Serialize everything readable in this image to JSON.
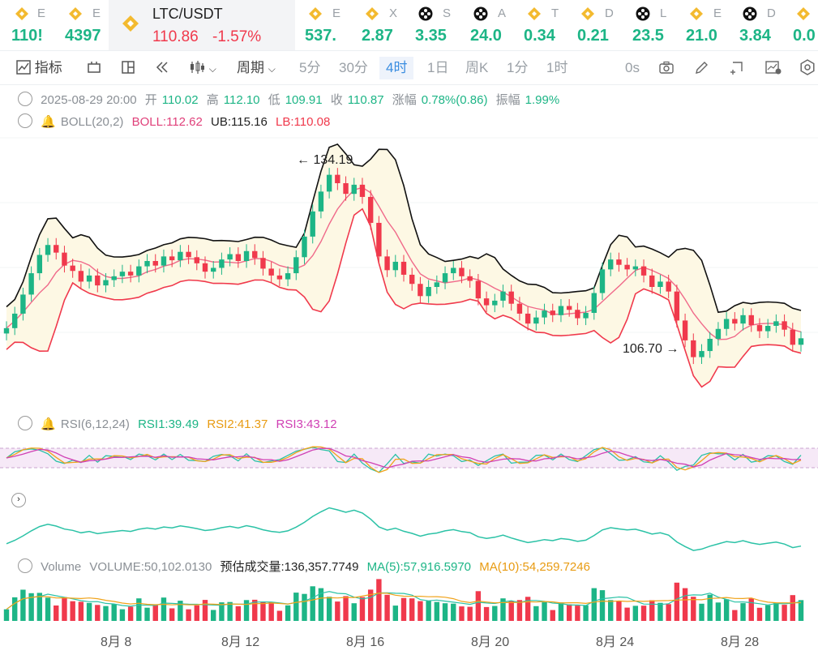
{
  "ticker": [
    {
      "sym": "E",
      "price": "110!",
      "icon": "binance-icon"
    },
    {
      "sym": "E",
      "price": "4397",
      "icon": "binance-icon"
    },
    {
      "sym": "E",
      "price": "537.",
      "icon": "binance-icon"
    },
    {
      "sym": "X",
      "price": "2.87",
      "icon": "binance-icon"
    },
    {
      "sym": "S",
      "price": "3.35",
      "icon": "dot-token-icon"
    },
    {
      "sym": "A",
      "price": "24.0",
      "icon": "dot-token-icon"
    },
    {
      "sym": "T",
      "price": "0.34",
      "icon": "binance-icon"
    },
    {
      "sym": "D",
      "price": "0.21",
      "icon": "binance-icon"
    },
    {
      "sym": "L",
      "price": "23.5",
      "icon": "dot-token-icon"
    },
    {
      "sym": "E",
      "price": "21.0",
      "icon": "binance-icon"
    },
    {
      "sym": "D",
      "price": "3.84",
      "icon": "dot-token-icon"
    },
    {
      "sym": "",
      "price": "0.0",
      "icon": "binance-icon"
    }
  ],
  "active": {
    "symbol": "LTC/USDT",
    "price": "110.86",
    "change": "-1.57%"
  },
  "toolbar": {
    "indicator": "指标",
    "period": "周期",
    "intervals": [
      "5分",
      "30分",
      "4时",
      "1日",
      "周K",
      "1分",
      "1时"
    ],
    "selected": "4时",
    "countdown": "0s"
  },
  "candle_info": {
    "date": "2025-08-29 20:00",
    "open_label": "开",
    "open": "110.02",
    "high_label": "高",
    "high": "112.10",
    "low_label": "低",
    "low": "109.91",
    "close_label": "收",
    "close": "110.87",
    "chg_label": "涨幅",
    "chg": "0.78%(0.86)",
    "amp_label": "振幅",
    "amp": "1.99%"
  },
  "boll": {
    "label": "BOLL(20,2)",
    "boll": "BOLL:112.62",
    "ub": "UB:115.16",
    "lb": "LB:110.08"
  },
  "annotations": {
    "high": "134.19",
    "low": "106.70"
  },
  "rsi": {
    "label": "RSI(6,12,24)",
    "rsi1": "RSI1:39.49",
    "rsi2": "RSI2:41.37",
    "rsi3": "RSI3:43.12"
  },
  "volume": {
    "label": "Volume",
    "vol": "VOLUME:50,102.0130",
    "est": "预估成交量:136,357.7749",
    "ma5": "MA(5):57,916.5970",
    "ma10": "MA(10):54,259.7246"
  },
  "x_axis": [
    "8月 8",
    "8月 12",
    "8月 16",
    "8月 20",
    "8月 24",
    "8月 28"
  ],
  "colors": {
    "up": "#1db586",
    "down": "#f0394c",
    "mid": "#f06a8a",
    "ub": "#111111",
    "rsi_band": "#f6e9f7",
    "line": "#2bc2a6"
  },
  "chart_data": {
    "type": "candlestick",
    "bars": [
      {
        "o": 111.5,
        "c": 112.2
      },
      {
        "o": 112.2,
        "c": 114.1
      },
      {
        "o": 114.1,
        "c": 116.6
      },
      {
        "o": 116.6,
        "c": 119.4
      },
      {
        "o": 119.4,
        "c": 121.8
      },
      {
        "o": 121.8,
        "c": 123.1
      },
      {
        "o": 123.1,
        "c": 122.1
      },
      {
        "o": 122.1,
        "c": 120.4
      },
      {
        "o": 120.4,
        "c": 119.7
      },
      {
        "o": 119.7,
        "c": 118.3
      },
      {
        "o": 118.3,
        "c": 119.1
      },
      {
        "o": 119.1,
        "c": 117.8
      },
      {
        "o": 117.8,
        "c": 118.5
      },
      {
        "o": 118.5,
        "c": 119.0
      },
      {
        "o": 119.0,
        "c": 119.6
      },
      {
        "o": 119.6,
        "c": 119.1
      },
      {
        "o": 119.1,
        "c": 120.3
      },
      {
        "o": 120.3,
        "c": 121.0
      },
      {
        "o": 121.0,
        "c": 120.4
      },
      {
        "o": 120.4,
        "c": 121.6
      },
      {
        "o": 121.6,
        "c": 121.1
      },
      {
        "o": 121.1,
        "c": 122.2
      },
      {
        "o": 122.2,
        "c": 121.5
      },
      {
        "o": 121.5,
        "c": 120.7
      },
      {
        "o": 120.7,
        "c": 119.6
      },
      {
        "o": 119.6,
        "c": 120.1
      },
      {
        "o": 120.1,
        "c": 121.2
      },
      {
        "o": 121.2,
        "c": 121.9
      },
      {
        "o": 121.9,
        "c": 121.0
      },
      {
        "o": 121.0,
        "c": 122.3
      },
      {
        "o": 122.3,
        "c": 121.4
      },
      {
        "o": 121.4,
        "c": 120.0
      },
      {
        "o": 120.0,
        "c": 119.1
      },
      {
        "o": 119.1,
        "c": 118.6
      },
      {
        "o": 118.6,
        "c": 119.4
      },
      {
        "o": 119.4,
        "c": 121.5
      },
      {
        "o": 121.5,
        "c": 124.2
      },
      {
        "o": 124.2,
        "c": 127.5
      },
      {
        "o": 127.5,
        "c": 130.1
      },
      {
        "o": 130.1,
        "c": 132.3
      },
      {
        "o": 132.3,
        "c": 131.2
      },
      {
        "o": 131.2,
        "c": 129.8
      },
      {
        "o": 129.8,
        "c": 131.0
      },
      {
        "o": 131.0,
        "c": 129.4
      },
      {
        "o": 129.4,
        "c": 126.0
      },
      {
        "o": 126.0,
        "c": 121.6
      },
      {
        "o": 121.6,
        "c": 119.8
      },
      {
        "o": 119.8,
        "c": 120.9
      },
      {
        "o": 120.9,
        "c": 119.2
      },
      {
        "o": 119.2,
        "c": 118.0
      },
      {
        "o": 118.0,
        "c": 116.4
      },
      {
        "o": 116.4,
        "c": 117.6
      },
      {
        "o": 117.6,
        "c": 118.2
      },
      {
        "o": 118.2,
        "c": 119.4
      },
      {
        "o": 119.4,
        "c": 120.1
      },
      {
        "o": 120.1,
        "c": 119.0
      },
      {
        "o": 119.0,
        "c": 118.4
      },
      {
        "o": 118.4,
        "c": 116.1
      },
      {
        "o": 116.1,
        "c": 115.2
      },
      {
        "o": 115.2,
        "c": 115.8
      },
      {
        "o": 115.8,
        "c": 117.0
      },
      {
        "o": 117.0,
        "c": 115.4
      },
      {
        "o": 115.4,
        "c": 114.1
      },
      {
        "o": 114.1,
        "c": 112.8
      },
      {
        "o": 112.8,
        "c": 113.6
      },
      {
        "o": 113.6,
        "c": 114.5
      },
      {
        "o": 114.5,
        "c": 113.9
      },
      {
        "o": 113.9,
        "c": 115.1
      },
      {
        "o": 115.1,
        "c": 114.6
      },
      {
        "o": 114.6,
        "c": 113.5
      },
      {
        "o": 113.5,
        "c": 114.2
      },
      {
        "o": 114.2,
        "c": 116.8
      },
      {
        "o": 116.8,
        "c": 119.9
      },
      {
        "o": 119.9,
        "c": 121.2
      },
      {
        "o": 121.2,
        "c": 120.5
      },
      {
        "o": 120.5,
        "c": 119.9
      },
      {
        "o": 119.9,
        "c": 120.3
      },
      {
        "o": 120.3,
        "c": 119.1
      },
      {
        "o": 119.1,
        "c": 117.6
      },
      {
        "o": 117.6,
        "c": 118.3
      },
      {
        "o": 118.3,
        "c": 117.0
      },
      {
        "o": 117.0,
        "c": 113.2
      },
      {
        "o": 113.2,
        "c": 110.6
      },
      {
        "o": 110.6,
        "c": 108.4
      },
      {
        "o": 108.4,
        "c": 109.2
      },
      {
        "o": 109.2,
        "c": 110.8
      },
      {
        "o": 110.8,
        "c": 112.1
      },
      {
        "o": 112.1,
        "c": 113.4
      },
      {
        "o": 113.4,
        "c": 112.8
      },
      {
        "o": 112.8,
        "c": 113.9
      },
      {
        "o": 113.9,
        "c": 112.6
      },
      {
        "o": 112.6,
        "c": 111.8
      },
      {
        "o": 111.8,
        "c": 112.5
      },
      {
        "o": 112.5,
        "c": 113.1
      },
      {
        "o": 113.1,
        "c": 112.0
      },
      {
        "o": 112.0,
        "c": 110.02
      },
      {
        "o": 110.02,
        "c": 110.87
      }
    ],
    "y_range": [
      104,
      138
    ]
  }
}
